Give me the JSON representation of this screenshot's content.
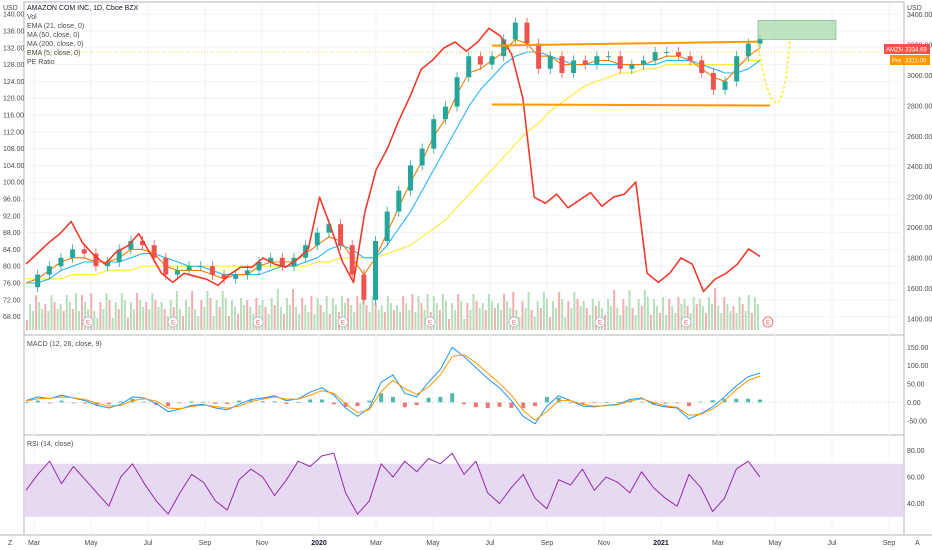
{
  "header": {
    "symbol_line": "AMAZON COM INC, 1D, Cboe BZX",
    "indicators": [
      "Vol",
      "EMA (21, close, 0)",
      "MA (50, close, 0)",
      "MA (200, close, 0)",
      "EMA (5, close, 0)",
      "PE Ratio"
    ]
  },
  "left_axis": {
    "unit": "USD",
    "ticks": [
      "140.00",
      "136.00",
      "132.00",
      "128.00",
      "124.00",
      "120.00",
      "116.00",
      "112.00",
      "108.00",
      "104.00",
      "100.00",
      "96.00",
      "92.00",
      "88.00",
      "84.00",
      "80.00",
      "76.00",
      "72.00",
      "68.00"
    ]
  },
  "right_axis": {
    "unit": "USD",
    "ticks": [
      "3400.00",
      "3200.00",
      "3000.00",
      "2800.00",
      "2600.00",
      "2400.00",
      "2200.00",
      "2000.00",
      "1800.00",
      "1600.00",
      "1400.00"
    ],
    "price_badge_symbol": "AMZN",
    "price_badge_value": "3334.69",
    "pre_badge_label": "Pre",
    "pre_badge_value": "3311.00",
    "colors": {
      "price": "#ef5350",
      "pre": "#ff9800"
    }
  },
  "macd_pane": {
    "title": "MACD (12, 26, close, 9)",
    "ticks": [
      "150.00",
      "100.00",
      "50.00",
      "0.00",
      "-50.00"
    ]
  },
  "rsi_pane": {
    "title": "RSI (14, close)",
    "ticks": [
      "80.00",
      "60.00",
      "40.00"
    ],
    "band": [
      30,
      70
    ]
  },
  "time_axis": {
    "labels": [
      "Mar",
      "May",
      "Jul",
      "Sep",
      "Nov",
      "2020",
      "Mar",
      "May",
      "Jul",
      "Sep",
      "Nov",
      "2021",
      "Mar",
      "May",
      "Jul",
      "Sep"
    ],
    "corner_left": "Z",
    "corner_right": "A"
  },
  "chart_data": {
    "type": "line",
    "x_range": [
      "2019-03",
      "2021-09"
    ],
    "price_axis_left_range": [
      66,
      141
    ],
    "price_axis_right_range": [
      1360,
      3430
    ],
    "series": [
      {
        "name": "AMZN",
        "kind": "candlestick",
        "color_up": "#26a69a",
        "color_down": "#ef5350",
        "close": [
          75,
          78,
          80,
          82,
          84,
          83,
          80,
          81,
          84,
          86,
          85,
          82,
          78,
          79,
          80,
          80,
          78,
          77,
          78,
          79,
          81,
          82,
          80,
          82,
          85,
          88,
          90,
          85,
          78,
          72,
          86,
          93,
          98,
          104,
          108,
          115,
          118,
          125,
          130,
          128,
          130,
          134,
          138,
          133,
          127,
          130,
          126,
          129,
          128,
          130,
          130,
          127,
          128,
          129,
          131,
          131,
          130,
          129,
          126,
          122,
          124,
          130,
          133,
          134
        ]
      },
      {
        "name": "EMA (21, close, 0)",
        "color": "#f57c00",
        "values": [
          76,
          77,
          79,
          81,
          82,
          82,
          81,
          81,
          82,
          84,
          84,
          83,
          80,
          79,
          79,
          79,
          78,
          77,
          78,
          78,
          80,
          81,
          81,
          81,
          83,
          85,
          87,
          86,
          82,
          78,
          82,
          88,
          94,
          100,
          105,
          111,
          115,
          121,
          126,
          127,
          129,
          131,
          134,
          133,
          130,
          130,
          128,
          128,
          128,
          129,
          129,
          128,
          128,
          128,
          129,
          130,
          130,
          129,
          127,
          125,
          124,
          127,
          130,
          132
        ]
      },
      {
        "name": "MA (50, close, 0)",
        "color": "#29b6f6",
        "values": [
          76,
          76,
          77,
          79,
          80,
          81,
          81,
          81,
          81,
          82,
          83,
          83,
          82,
          81,
          80,
          80,
          79,
          78,
          78,
          78,
          78,
          79,
          80,
          80,
          81,
          82,
          84,
          85,
          84,
          82,
          82,
          85,
          89,
          93,
          98,
          103,
          108,
          113,
          118,
          122,
          125,
          128,
          130,
          131,
          131,
          130,
          129,
          128,
          128,
          128,
          128,
          128,
          128,
          128,
          128,
          129,
          129,
          129,
          128,
          127,
          126,
          126,
          127,
          129
        ]
      },
      {
        "name": "MA (200, close, 0)",
        "color": "#ffeb3b",
        "values": [
          77,
          77,
          77,
          77,
          78,
          78,
          78,
          79,
          79,
          79,
          80,
          80,
          80,
          80,
          80,
          80,
          80,
          80,
          80,
          80,
          80,
          80,
          80,
          80,
          80,
          81,
          81,
          82,
          82,
          82,
          82,
          83,
          84,
          85,
          87,
          89,
          91,
          94,
          97,
          100,
          103,
          106,
          109,
          112,
          114,
          117,
          119,
          121,
          123,
          124,
          125,
          126,
          126,
          127,
          127,
          128,
          128,
          128,
          128,
          128,
          128,
          128,
          129,
          129
        ]
      },
      {
        "name": "PE Ratio",
        "color": "#f23a2c",
        "axis": "right",
        "values": [
          1760,
          1830,
          1900,
          1960,
          2040,
          1900,
          1820,
          1760,
          1840,
          1880,
          1960,
          1830,
          1700,
          1640,
          1700,
          1680,
          1660,
          1620,
          1690,
          1740,
          1740,
          1800,
          1760,
          1740,
          1790,
          1860,
          2200,
          2000,
          1780,
          1640,
          2100,
          2380,
          2520,
          2700,
          2860,
          3040,
          3100,
          3180,
          3220,
          3160,
          3220,
          3310,
          3260,
          3140,
          2850,
          2200,
          2160,
          2220,
          2130,
          2180,
          2230,
          2140,
          2200,
          2220,
          2300,
          1700,
          1640,
          1700,
          1800,
          1760,
          1580,
          1660,
          1700,
          1760,
          1860,
          1810
        ]
      },
      {
        "name": "MACD",
        "color": "#2196f3",
        "values": [
          5,
          15,
          10,
          20,
          12,
          5,
          -8,
          -15,
          -5,
          15,
          12,
          -3,
          -25,
          -18,
          -8,
          -5,
          -15,
          -20,
          -5,
          8,
          12,
          18,
          5,
          10,
          28,
          40,
          20,
          -15,
          -38,
          -15,
          55,
          75,
          25,
          15,
          55,
          90,
          150,
          125,
          95,
          65,
          40,
          5,
          -38,
          -58,
          -10,
          18,
          5,
          -10,
          -12,
          -8,
          -5,
          8,
          12,
          -5,
          -12,
          -15,
          -45,
          -30,
          -12,
          15,
          45,
          70,
          80
        ]
      },
      {
        "name": "Signal",
        "color": "#ff9800",
        "values": [
          4,
          10,
          11,
          15,
          13,
          8,
          -2,
          -10,
          -8,
          5,
          10,
          4,
          -15,
          -17,
          -11,
          -7,
          -11,
          -16,
          -10,
          2,
          9,
          15,
          9,
          9,
          20,
          32,
          25,
          -3,
          -28,
          -20,
          30,
          60,
          38,
          22,
          42,
          75,
          125,
          130,
          108,
          80,
          52,
          20,
          -22,
          -48,
          -25,
          5,
          5,
          -5,
          -10,
          -9,
          -6,
          4,
          10,
          0,
          -9,
          -13,
          -35,
          -32,
          -18,
          5,
          35,
          60,
          72
        ]
      },
      {
        "name": "RSI",
        "color": "#9c27b0",
        "values": [
          50,
          62,
          72,
          55,
          68,
          58,
          48,
          38,
          60,
          70,
          55,
          42,
          32,
          48,
          62,
          56,
          42,
          35,
          58,
          66,
          60,
          46,
          58,
          72,
          68,
          76,
          78,
          48,
          32,
          42,
          70,
          60,
          72,
          64,
          74,
          70,
          78,
          62,
          72,
          48,
          40,
          52,
          62,
          44,
          36,
          58,
          54,
          66,
          50,
          60,
          56,
          48,
          64,
          52,
          44,
          38,
          62,
          52,
          34,
          44,
          66,
          72,
          60
        ]
      }
    ],
    "rsi_range": [
      20,
      88
    ],
    "macd_range": [
      -75,
      170
    ],
    "resistance_level_left": 133,
    "support_level_left": 118.5,
    "dotted_price_line_left": 131
  }
}
